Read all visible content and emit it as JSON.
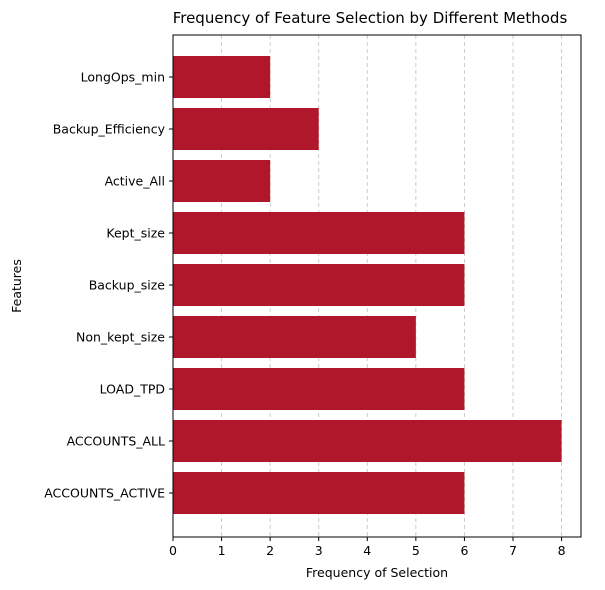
{
  "chart_data": {
    "type": "bar",
    "orientation": "horizontal",
    "title": "Frequency of Feature Selection by Different Methods",
    "xlabel": "Frequency of Selection",
    "ylabel": "Features",
    "categories": [
      "ACCOUNTS_ACTIVE",
      "ACCOUNTS_ALL",
      "LOAD_TPD",
      "Non_kept_size",
      "Backup_size",
      "Kept_size",
      "Active_All",
      "Backup_Efficiency",
      "LongOps_min"
    ],
    "values": [
      6,
      8,
      6,
      5,
      6,
      6,
      2,
      3,
      2
    ],
    "xlim": [
      0,
      8.4
    ],
    "xticks": [
      0,
      1,
      2,
      3,
      4,
      5,
      6,
      7,
      8
    ],
    "grid": "x, dashed",
    "bar_color": "#b0172b"
  }
}
